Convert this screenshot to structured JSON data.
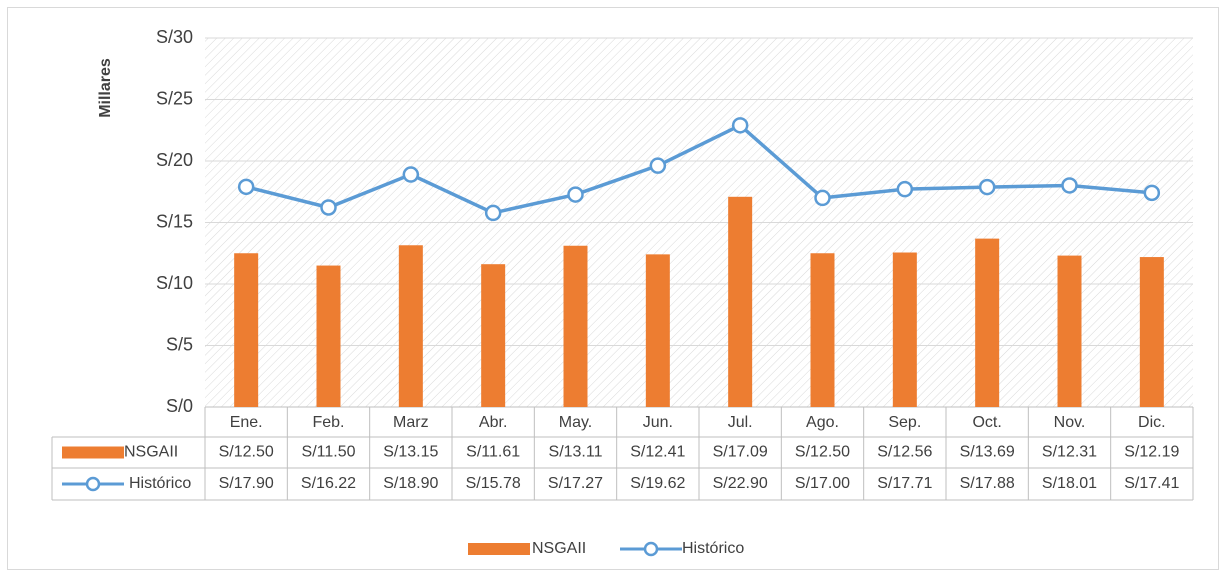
{
  "chart_data": {
    "type": "bar_line",
    "y_label": "Millares",
    "categories": [
      "Ene.",
      "Feb.",
      "Marz",
      "Abr.",
      "May.",
      "Jun.",
      "Jul.",
      "Ago.",
      "Sep.",
      "Oct.",
      "Nov.",
      "Dic."
    ],
    "series": [
      {
        "name": "NSGAII",
        "type": "bar",
        "color": "#ed7d31",
        "values": [
          12.5,
          11.5,
          13.15,
          11.61,
          13.11,
          12.41,
          17.09,
          12.5,
          12.56,
          13.69,
          12.31,
          12.19
        ],
        "value_labels": [
          "S/12.50",
          "S/11.50",
          "S/13.15",
          "S/11.61",
          "S/13.11",
          "S/12.41",
          "S/17.09",
          "S/12.50",
          "S/12.56",
          "S/13.69",
          "S/12.31",
          "S/12.19"
        ]
      },
      {
        "name": "Histórico",
        "type": "line",
        "color": "#5b9bd5",
        "values": [
          17.9,
          16.22,
          18.9,
          15.78,
          17.27,
          19.62,
          22.9,
          17.0,
          17.71,
          17.88,
          18.01,
          17.41
        ],
        "value_labels": [
          "S/17.90",
          "S/16.22",
          "S/18.90",
          "S/15.78",
          "S/17.27",
          "S/19.62",
          "S/22.90",
          "S/17.00",
          "S/17.71",
          "S/17.88",
          "S/18.01",
          "S/17.41"
        ]
      }
    ],
    "ylim": [
      0,
      30
    ],
    "yticks": [
      {
        "value": 0,
        "label": "S/0"
      },
      {
        "value": 5,
        "label": "S/5"
      },
      {
        "value": 10,
        "label": "S/10"
      },
      {
        "value": 15,
        "label": "S/15"
      },
      {
        "value": 20,
        "label": "S/20"
      },
      {
        "value": 25,
        "label": "S/25"
      },
      {
        "value": 30,
        "label": "S/30"
      }
    ],
    "grid": true,
    "legend": "bottom"
  }
}
